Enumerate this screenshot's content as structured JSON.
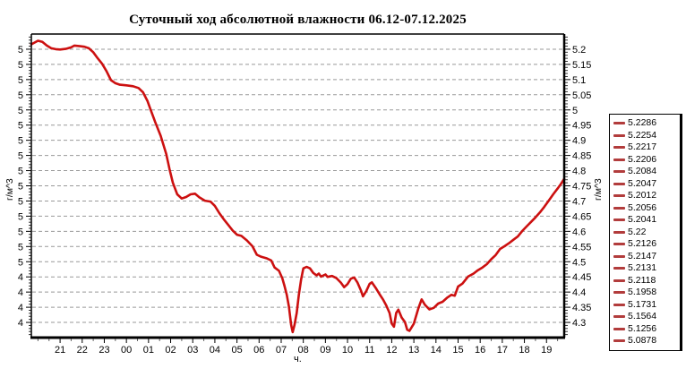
{
  "chart_data": {
    "type": "line",
    "title": "Суточный ход абсолютной влажности 06.12-07.12.2025",
    "x_axis": {
      "label": "ч.",
      "range_hours": [
        19.7,
        43.8
      ],
      "tick_hours": [
        21,
        22,
        23,
        24,
        25,
        26,
        27,
        28,
        29,
        30,
        31,
        32,
        33,
        34,
        35,
        36,
        37,
        38,
        39,
        40,
        41,
        42,
        43
      ],
      "tick_labels": [
        "21",
        "22",
        "23",
        "00",
        "01",
        "02",
        "03",
        "04",
        "05",
        "06",
        "07",
        "08",
        "09",
        "10",
        "11",
        "12",
        "13",
        "14",
        "15",
        "16",
        "17",
        "18",
        "19"
      ]
    },
    "y_axis": {
      "range": [
        4.25,
        5.25
      ],
      "major_step": 0.05,
      "minor_step": 0.01,
      "major_values": [
        5.2,
        5.15,
        5.1,
        5.05,
        5.0,
        4.95,
        4.9,
        4.85,
        4.8,
        4.75,
        4.7,
        4.65,
        4.6,
        4.55,
        4.5,
        4.45,
        4.4,
        4.35,
        4.3
      ],
      "right_labels": [
        "5.2",
        "5.15",
        "5.1",
        "5.05",
        "5",
        "4.95",
        "4.9",
        "4.85",
        "4.8",
        "4.75",
        "4.7",
        "4.65",
        "4.6",
        "4.55",
        "4.5",
        "4.45",
        "4.4",
        "4.35",
        "4.3"
      ],
      "left_labels": [
        "5",
        "5",
        "5",
        "5",
        "5",
        "5",
        "5",
        "5",
        "5",
        "5",
        "5",
        "5",
        "5",
        "5",
        "5",
        "4",
        "4",
        "4",
        "4"
      ],
      "left_title": "г/м^3",
      "right_title": "г/м^3"
    },
    "grid": {
      "color": "#999999",
      "dash": "4 3"
    },
    "series": [
      {
        "name": "absolute-humidity",
        "color": "#cc1010",
        "points": [
          [
            19.7,
            5.216
          ],
          [
            19.85,
            5.222
          ],
          [
            20.0,
            5.228
          ],
          [
            20.2,
            5.224
          ],
          [
            20.4,
            5.212
          ],
          [
            20.6,
            5.203
          ],
          [
            20.8,
            5.2
          ],
          [
            21.0,
            5.199
          ],
          [
            21.25,
            5.201
          ],
          [
            21.5,
            5.206
          ],
          [
            21.65,
            5.212
          ],
          [
            21.9,
            5.21
          ],
          [
            22.1,
            5.208
          ],
          [
            22.3,
            5.203
          ],
          [
            22.5,
            5.19
          ],
          [
            22.7,
            5.17
          ],
          [
            22.9,
            5.152
          ],
          [
            23.1,
            5.128
          ],
          [
            23.3,
            5.098
          ],
          [
            23.5,
            5.088
          ],
          [
            23.7,
            5.083
          ],
          [
            24.0,
            5.081
          ],
          [
            24.3,
            5.078
          ],
          [
            24.55,
            5.072
          ],
          [
            24.75,
            5.058
          ],
          [
            24.95,
            5.03
          ],
          [
            25.1,
            5.0
          ],
          [
            25.3,
            4.96
          ],
          [
            25.55,
            4.915
          ],
          [
            25.8,
            4.855
          ],
          [
            25.95,
            4.805
          ],
          [
            26.1,
            4.76
          ],
          [
            26.3,
            4.722
          ],
          [
            26.5,
            4.708
          ],
          [
            26.7,
            4.713
          ],
          [
            26.9,
            4.722
          ],
          [
            27.1,
            4.724
          ],
          [
            27.3,
            4.712
          ],
          [
            27.55,
            4.701
          ],
          [
            27.8,
            4.698
          ],
          [
            28.0,
            4.684
          ],
          [
            28.2,
            4.66
          ],
          [
            28.4,
            4.64
          ],
          [
            28.6,
            4.622
          ],
          [
            28.8,
            4.603
          ],
          [
            29.0,
            4.589
          ],
          [
            29.2,
            4.585
          ],
          [
            29.45,
            4.57
          ],
          [
            29.7,
            4.551
          ],
          [
            29.9,
            4.523
          ],
          [
            30.1,
            4.516
          ],
          [
            30.35,
            4.511
          ],
          [
            30.55,
            4.504
          ],
          [
            30.7,
            4.481
          ],
          [
            30.9,
            4.47
          ],
          [
            31.05,
            4.446
          ],
          [
            31.15,
            4.42
          ],
          [
            31.25,
            4.391
          ],
          [
            31.35,
            4.352
          ],
          [
            31.45,
            4.292
          ],
          [
            31.52,
            4.268
          ],
          [
            31.6,
            4.291
          ],
          [
            31.7,
            4.331
          ],
          [
            31.8,
            4.391
          ],
          [
            31.9,
            4.441
          ],
          [
            32.0,
            4.478
          ],
          [
            32.15,
            4.483
          ],
          [
            32.3,
            4.478
          ],
          [
            32.45,
            4.463
          ],
          [
            32.6,
            4.455
          ],
          [
            32.7,
            4.461
          ],
          [
            32.8,
            4.451
          ],
          [
            33.0,
            4.458
          ],
          [
            33.1,
            4.45
          ],
          [
            33.3,
            4.453
          ],
          [
            33.5,
            4.446
          ],
          [
            33.7,
            4.431
          ],
          [
            33.85,
            4.416
          ],
          [
            34.0,
            4.426
          ],
          [
            34.15,
            4.444
          ],
          [
            34.3,
            4.448
          ],
          [
            34.45,
            4.431
          ],
          [
            34.6,
            4.406
          ],
          [
            34.7,
            4.386
          ],
          [
            34.85,
            4.403
          ],
          [
            35.0,
            4.427
          ],
          [
            35.1,
            4.432
          ],
          [
            35.3,
            4.411
          ],
          [
            35.45,
            4.393
          ],
          [
            35.6,
            4.376
          ],
          [
            35.75,
            4.356
          ],
          [
            35.9,
            4.331
          ],
          [
            36.0,
            4.296
          ],
          [
            36.1,
            4.286
          ],
          [
            36.2,
            4.331
          ],
          [
            36.3,
            4.342
          ],
          [
            36.45,
            4.316
          ],
          [
            36.6,
            4.301
          ],
          [
            36.7,
            4.276
          ],
          [
            36.8,
            4.272
          ],
          [
            37.0,
            4.296
          ],
          [
            37.2,
            4.346
          ],
          [
            37.35,
            4.376
          ],
          [
            37.5,
            4.358
          ],
          [
            37.7,
            4.343
          ],
          [
            37.9,
            4.348
          ],
          [
            38.1,
            4.362
          ],
          [
            38.3,
            4.368
          ],
          [
            38.5,
            4.381
          ],
          [
            38.7,
            4.391
          ],
          [
            38.85,
            4.388
          ],
          [
            39.0,
            4.418
          ],
          [
            39.2,
            4.428
          ],
          [
            39.45,
            4.451
          ],
          [
            39.7,
            4.461
          ],
          [
            39.9,
            4.472
          ],
          [
            40.1,
            4.481
          ],
          [
            40.3,
            4.492
          ],
          [
            40.5,
            4.508
          ],
          [
            40.7,
            4.522
          ],
          [
            40.9,
            4.542
          ],
          [
            41.1,
            4.551
          ],
          [
            41.3,
            4.561
          ],
          [
            41.5,
            4.572
          ],
          [
            41.7,
            4.583
          ],
          [
            41.9,
            4.601
          ],
          [
            42.1,
            4.616
          ],
          [
            42.3,
            4.631
          ],
          [
            42.5,
            4.646
          ],
          [
            42.7,
            4.662
          ],
          [
            42.9,
            4.681
          ],
          [
            43.1,
            4.701
          ],
          [
            43.3,
            4.722
          ],
          [
            43.5,
            4.741
          ],
          [
            43.65,
            4.756
          ],
          [
            43.8,
            4.773
          ]
        ]
      }
    ],
    "legend": {
      "marker_color": "#b23c3c",
      "entries": [
        "5.2286",
        "5.2254",
        "5.2217",
        "5.2206",
        "5.2084",
        "5.2047",
        "5.2012",
        "5.2056",
        "5.2041",
        "5.22",
        "5.2126",
        "5.2147",
        "5.2131",
        "5.2118",
        "5.1958",
        "5.1731",
        "5.1564",
        "5.1256",
        "5.0878"
      ]
    }
  }
}
